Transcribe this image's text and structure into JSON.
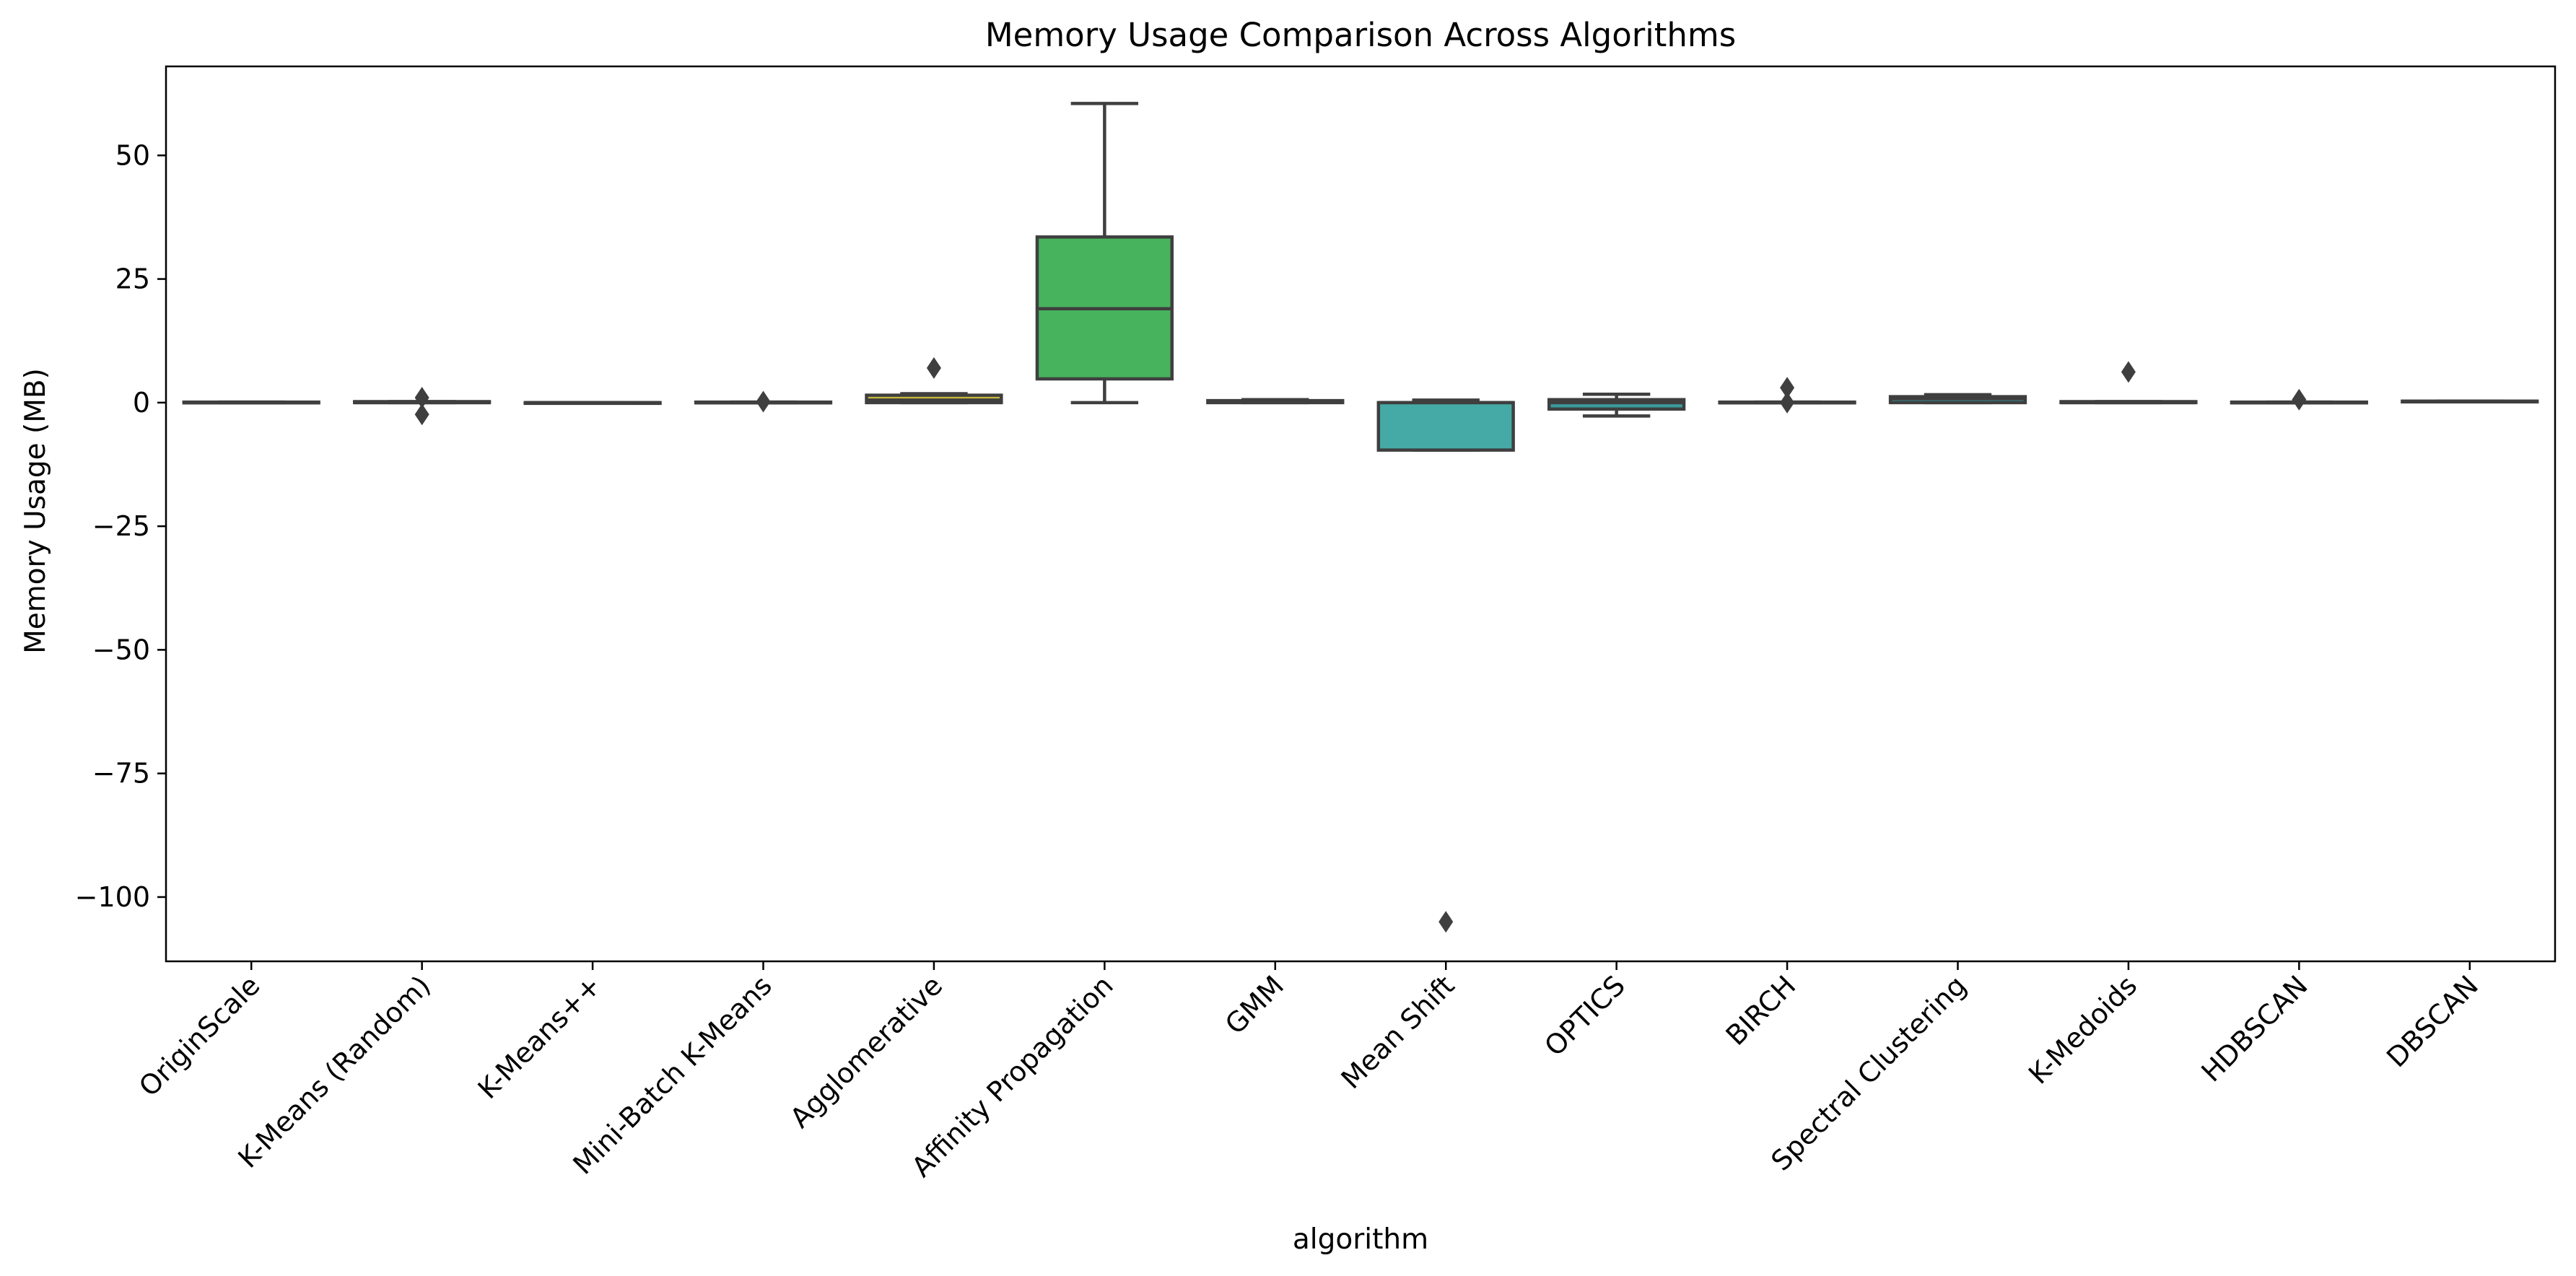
{
  "chart_data": {
    "type": "box",
    "title": "Memory Usage Comparison Across Algorithms",
    "xlabel": "algorithm",
    "ylabel": "Memory Usage (MB)",
    "ylim": [
      -113,
      68
    ],
    "yticks": [
      50,
      25,
      0,
      -25,
      -50,
      -75,
      -100
    ],
    "ytick_labels": [
      "50",
      "25",
      "0",
      "−25",
      "−50",
      "−75",
      "−100"
    ],
    "grid": false,
    "legend": "none",
    "series": [
      {
        "category": "OriginScale",
        "color": "#3274a1",
        "whislo": 0.0,
        "q1": 0.0,
        "med": 0.0,
        "q3": 0.1,
        "whishi": 0.1,
        "fliers": []
      },
      {
        "category": "K-Means (Random)",
        "color": "#3a7f9e",
        "whislo": 0.0,
        "q1": 0.0,
        "med": 0.0,
        "q3": 0.2,
        "whishi": 0.2,
        "fliers": [
          1.0,
          -2.4
        ]
      },
      {
        "category": "K-Means++",
        "color": "#3f8a9a",
        "whislo": 0.0,
        "q1": 0.0,
        "med": 0.0,
        "q3": 0.0,
        "whishi": 0.0,
        "fliers": []
      },
      {
        "category": "Mini-Batch K-Means",
        "color": "#459596",
        "whislo": 0.0,
        "q1": 0.0,
        "med": 0.0,
        "q3": 0.1,
        "whishi": 0.1,
        "fliers": [
          0.2
        ]
      },
      {
        "category": "Agglomerative",
        "color": "#c5b93a",
        "whislo": 0.0,
        "q1": 0.0,
        "med": 0.5,
        "q3": 1.5,
        "whishi": 1.8,
        "fliers": [
          7.0
        ]
      },
      {
        "category": "Affinity Propagation",
        "color": "#47b35d",
        "whislo": 0.0,
        "q1": 4.8,
        "med": 19.0,
        "q3": 33.5,
        "whishi": 60.5,
        "fliers": []
      },
      {
        "category": "GMM",
        "color": "#3e9e6e",
        "whislo": 0.0,
        "q1": 0.0,
        "med": 0.2,
        "q3": 0.4,
        "whishi": 0.6,
        "fliers": []
      },
      {
        "category": "Mean Shift",
        "color": "#45aaa5",
        "whislo": -9.6,
        "q1": -9.6,
        "med": 0.0,
        "q3": 0.0,
        "whishi": 0.5,
        "fliers": [
          -105.0
        ]
      },
      {
        "category": "OPTICS",
        "color": "#3a9a9a",
        "whislo": -2.7,
        "q1": -1.3,
        "med": 0.0,
        "q3": 0.6,
        "whishi": 1.7,
        "fliers": []
      },
      {
        "category": "BIRCH",
        "color": "#3a8f96",
        "whislo": 0.0,
        "q1": 0.0,
        "med": 0.0,
        "q3": 0.1,
        "whishi": 0.1,
        "fliers": [
          3.0,
          0.0
        ]
      },
      {
        "category": "Spectral Clustering",
        "color": "#3a8a8f",
        "whislo": 0.0,
        "q1": 0.0,
        "med": 0.8,
        "q3": 1.2,
        "whishi": 1.6,
        "fliers": []
      },
      {
        "category": "K-Medoids",
        "color": "#3a858a",
        "whislo": 0.0,
        "q1": 0.0,
        "med": 0.0,
        "q3": 0.2,
        "whishi": 0.2,
        "fliers": [
          6.2
        ]
      },
      {
        "category": "HDBSCAN",
        "color": "#3a8088",
        "whislo": 0.0,
        "q1": 0.0,
        "med": 0.0,
        "q3": 0.1,
        "whishi": 0.1,
        "fliers": [
          0.6
        ]
      },
      {
        "category": "DBSCAN",
        "color": "#3a7b85",
        "whislo": 0.2,
        "q1": 0.2,
        "med": 0.2,
        "q3": 0.3,
        "whishi": 0.3,
        "fliers": []
      }
    ]
  }
}
